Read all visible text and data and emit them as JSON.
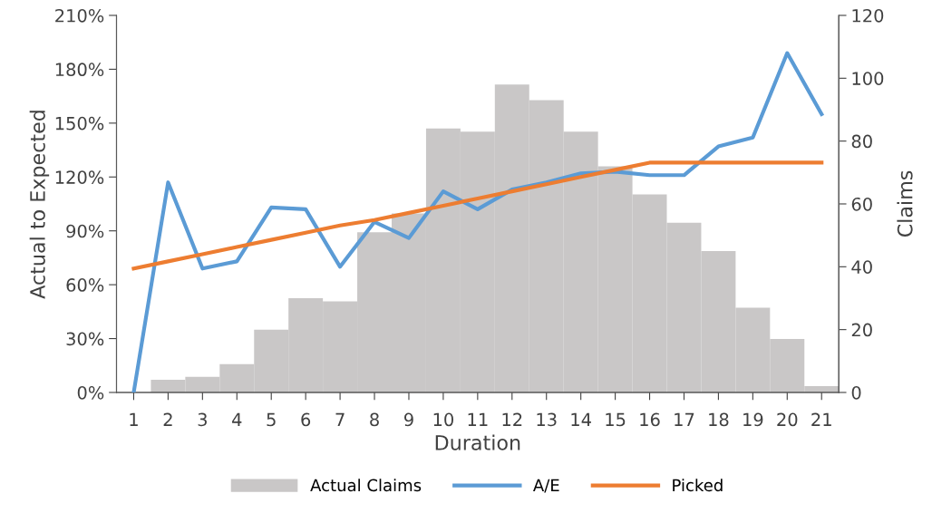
{
  "chart_data": {
    "type": "line",
    "xlabel": "Duration",
    "ylabel": "Actual to Expected",
    "y2label": "Claims",
    "categories": [
      "1",
      "2",
      "3",
      "4",
      "5",
      "6",
      "7",
      "8",
      "9",
      "10",
      "11",
      "12",
      "13",
      "14",
      "15",
      "16",
      "17",
      "18",
      "19",
      "20",
      "21"
    ],
    "series": [
      {
        "name": "Actual Claims",
        "type": "bar",
        "axis": "y2",
        "color": "#c9c7c7",
        "values": [
          0,
          4,
          5,
          9,
          20,
          30,
          29,
          51,
          57,
          84,
          83,
          98,
          93,
          83,
          72,
          63,
          54,
          45,
          27,
          17,
          2
        ]
      },
      {
        "name": "A/E",
        "color": "#5b9bd5",
        "values": [
          0,
          117,
          69,
          73,
          103,
          102,
          70,
          95,
          86,
          112,
          102,
          113,
          117,
          122,
          123,
          121,
          121,
          137,
          142,
          189,
          155
        ]
      },
      {
        "name": "Picked",
        "color": "#ed7d31",
        "values": [
          69,
          73,
          77,
          81,
          85,
          89,
          93,
          96,
          100,
          104,
          108,
          112,
          116,
          120,
          124,
          128,
          128,
          128,
          128,
          128,
          128
        ]
      }
    ],
    "ylim": [
      0,
      210
    ],
    "yticks": [
      {
        "value": 0,
        "label": "0%"
      },
      {
        "value": 30,
        "label": "30%"
      },
      {
        "value": 60,
        "label": "60%"
      },
      {
        "value": 90,
        "label": "90%"
      },
      {
        "value": 120,
        "label": "120%"
      },
      {
        "value": 150,
        "label": "150%"
      },
      {
        "value": 180,
        "label": "180%"
      },
      {
        "value": 210,
        "label": "210%"
      }
    ],
    "y2lim": [
      0,
      120
    ],
    "y2ticks": [
      0,
      20,
      40,
      60,
      80,
      100,
      120
    ],
    "grid": false,
    "legend": "bottom",
    "marker": "none",
    "line_style": "solid"
  }
}
